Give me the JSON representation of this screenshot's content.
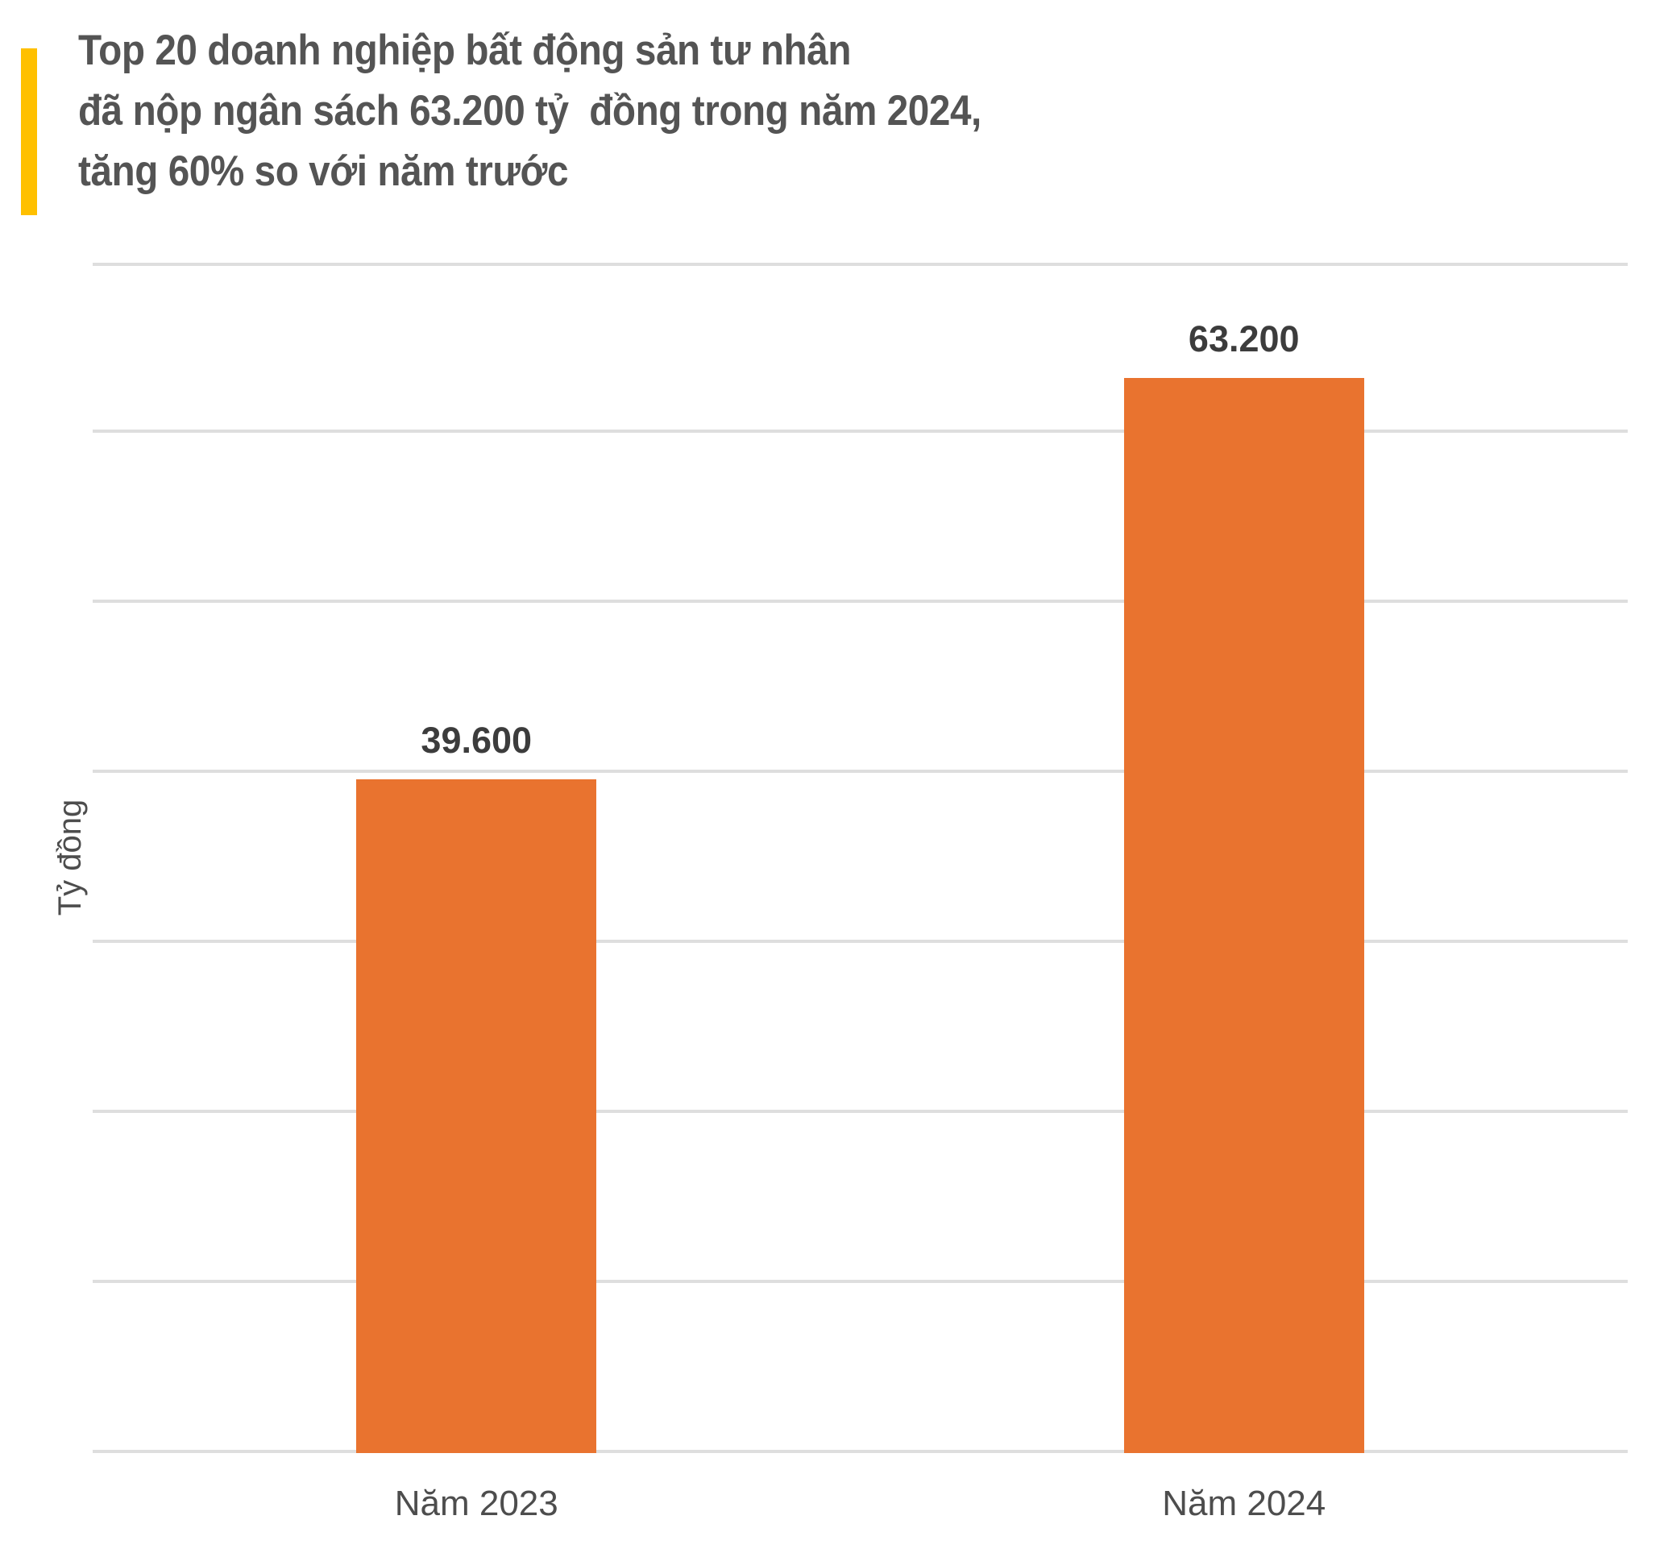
{
  "title": {
    "lines": [
      "Top 20 doanh nghiệp bất động sản tư nhân",
      "đã nộp ngân sách 63.200 tỷ  đồng trong năm 2024,",
      "tăng 60% so với năm trước"
    ]
  },
  "colors": {
    "accent": "#FFC000",
    "bar": "#E9732F",
    "title_text": "#545454",
    "value_label": "#3C3C3C",
    "axis_label": "#4D4D4D",
    "gridline": "#DEDEDE",
    "background": "#FFFFFF"
  },
  "chart_data": {
    "type": "bar",
    "title": "Top 20 doanh nghiệp bất động sản tư nhân đã nộp ngân sách 63.200 tỷ đồng trong năm 2024, tăng 60% so với năm trước",
    "categories": [
      "Năm 2023",
      "Năm 2024"
    ],
    "values": [
      39600,
      63200
    ],
    "value_labels": [
      "39.600",
      "63.200"
    ],
    "xlabel": "",
    "ylabel": "Tỷ đồng",
    "ylim": [
      0,
      70000
    ],
    "gridline_step": 10000,
    "grid": "horizontal",
    "legend": "none",
    "y_tick_labels_visible": false
  }
}
